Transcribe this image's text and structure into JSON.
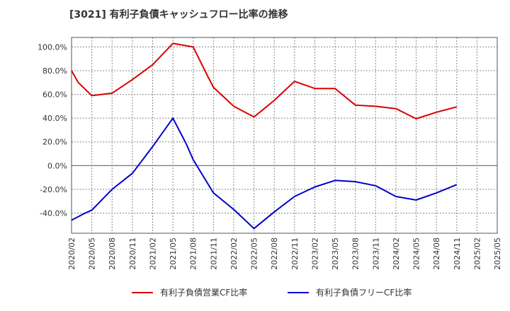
{
  "chart_data": {
    "type": "line",
    "title": "[3021]  有利子負債キャッシュフロー比率の推移",
    "x_ticks": [
      "2020/02",
      "2020/05",
      "2020/08",
      "2020/11",
      "2021/02",
      "2021/05",
      "2021/08",
      "2021/11",
      "2022/02",
      "2022/05",
      "2022/08",
      "2022/11",
      "2023/02",
      "2023/05",
      "2023/08",
      "2023/11",
      "2024/02",
      "2024/05",
      "2024/08",
      "2024/11",
      "2025/02",
      "2025/05"
    ],
    "y_ticks": [
      "100.0%",
      "80.0%",
      "60.0%",
      "40.0%",
      "20.0%",
      "0.0%",
      "-20.0%",
      "-40.0%"
    ],
    "ylim": [
      -57,
      108
    ],
    "grid": true,
    "legend_position": "bottom",
    "series": [
      {
        "name": "有利子負債営業CF比率",
        "color": "#dd0000",
        "x": [
          "2020/02",
          "2020/03",
          "2020/05",
          "2020/08",
          "2020/11",
          "2021/02",
          "2021/05",
          "2021/08",
          "2021/10",
          "2021/11",
          "2022/02",
          "2022/05",
          "2022/08",
          "2022/11",
          "2023/02",
          "2023/05",
          "2023/08",
          "2023/11",
          "2024/02",
          "2024/05",
          "2024/08",
          "2024/11"
        ],
        "values": [
          80,
          70,
          59,
          61,
          72.5,
          85,
          103,
          100,
          77,
          66,
          50,
          41,
          55,
          71,
          65,
          65,
          51,
          50,
          48,
          39.5,
          45,
          49.5
        ]
      },
      {
        "name": "有利子負債フリーCF比率",
        "color": "#0000cc",
        "x": [
          "2020/02",
          "2020/04",
          "2020/05",
          "2020/08",
          "2020/11",
          "2021/02",
          "2021/05",
          "2021/07",
          "2021/08",
          "2021/11",
          "2022/02",
          "2022/05",
          "2022/08",
          "2022/11",
          "2023/02",
          "2023/05",
          "2023/08",
          "2023/11",
          "2024/02",
          "2024/05",
          "2024/08",
          "2024/11"
        ],
        "values": [
          -46,
          -40,
          -37.5,
          -20,
          -6.5,
          16,
          40,
          18,
          5,
          -23,
          -37,
          -53,
          -39,
          -26,
          -18,
          -12.5,
          -13.5,
          -17,
          -26,
          -29,
          -23,
          -16
        ]
      }
    ]
  }
}
